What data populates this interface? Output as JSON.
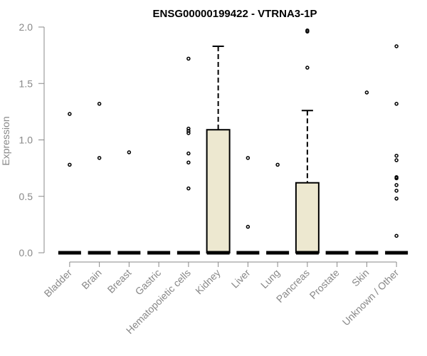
{
  "chart_data": {
    "type": "boxplot",
    "title": "ENSG00000199422 - VTRNA3-1P",
    "xlabel": "",
    "ylabel": "Expression",
    "ylim": [
      0,
      2.0
    ],
    "yticks": [
      0.0,
      0.5,
      1.0,
      1.5,
      2.0
    ],
    "ytick_labels": [
      "0.0",
      "0.5",
      "1.0",
      "1.5",
      "2.0"
    ],
    "box_fill": "#ede8d0",
    "categories": [
      "Bladder",
      "Brain",
      "Breast",
      "Gastric",
      "Hematopoietic cells",
      "Kidney",
      "Liver",
      "Lung",
      "Pancreas",
      "Prostate",
      "Skin",
      "Unknown / Other"
    ],
    "boxes": [
      {
        "name": "Bladder",
        "q1": 0,
        "median": 0,
        "q3": 0,
        "whisker_low": 0,
        "whisker_high": 0,
        "outliers": [
          1.23,
          0.78
        ]
      },
      {
        "name": "Brain",
        "q1": 0,
        "median": 0,
        "q3": 0,
        "whisker_low": 0,
        "whisker_high": 0,
        "outliers": [
          1.32,
          0.84
        ]
      },
      {
        "name": "Breast",
        "q1": 0,
        "median": 0,
        "q3": 0,
        "whisker_low": 0,
        "whisker_high": 0,
        "outliers": [
          0.89
        ]
      },
      {
        "name": "Gastric",
        "q1": 0,
        "median": 0,
        "q3": 0,
        "whisker_low": 0,
        "whisker_high": 0,
        "outliers": []
      },
      {
        "name": "Hematopoietic cells",
        "q1": 0,
        "median": 0,
        "q3": 0,
        "whisker_low": 0,
        "whisker_high": 0,
        "outliers": [
          1.72,
          1.1,
          1.08,
          1.06,
          0.88,
          0.8,
          0.57
        ]
      },
      {
        "name": "Kidney",
        "q1": 0,
        "median": 0,
        "q3": 1.09,
        "whisker_low": 0,
        "whisker_high": 1.83,
        "outliers": []
      },
      {
        "name": "Liver",
        "q1": 0,
        "median": 0,
        "q3": 0,
        "whisker_low": 0,
        "whisker_high": 0,
        "outliers": [
          0.84,
          0.23
        ]
      },
      {
        "name": "Lung",
        "q1": 0,
        "median": 0,
        "q3": 0,
        "whisker_low": 0,
        "whisker_high": 0,
        "outliers": [
          0.78
        ]
      },
      {
        "name": "Pancreas",
        "q1": 0,
        "median": 0,
        "q3": 0.62,
        "whisker_low": 0,
        "whisker_high": 1.26,
        "outliers": [
          1.97,
          1.96,
          1.64
        ]
      },
      {
        "name": "Prostate",
        "q1": 0,
        "median": 0,
        "q3": 0,
        "whisker_low": 0,
        "whisker_high": 0,
        "outliers": []
      },
      {
        "name": "Skin",
        "q1": 0,
        "median": 0,
        "q3": 0,
        "whisker_low": 0,
        "whisker_high": 0,
        "outliers": [
          1.42
        ]
      },
      {
        "name": "Unknown / Other",
        "q1": 0,
        "median": 0,
        "q3": 0,
        "whisker_low": 0,
        "whisker_high": 0,
        "outliers": [
          1.83,
          1.32,
          0.86,
          0.82,
          0.67,
          0.66,
          0.6,
          0.55,
          0.48,
          0.15
        ]
      }
    ]
  }
}
